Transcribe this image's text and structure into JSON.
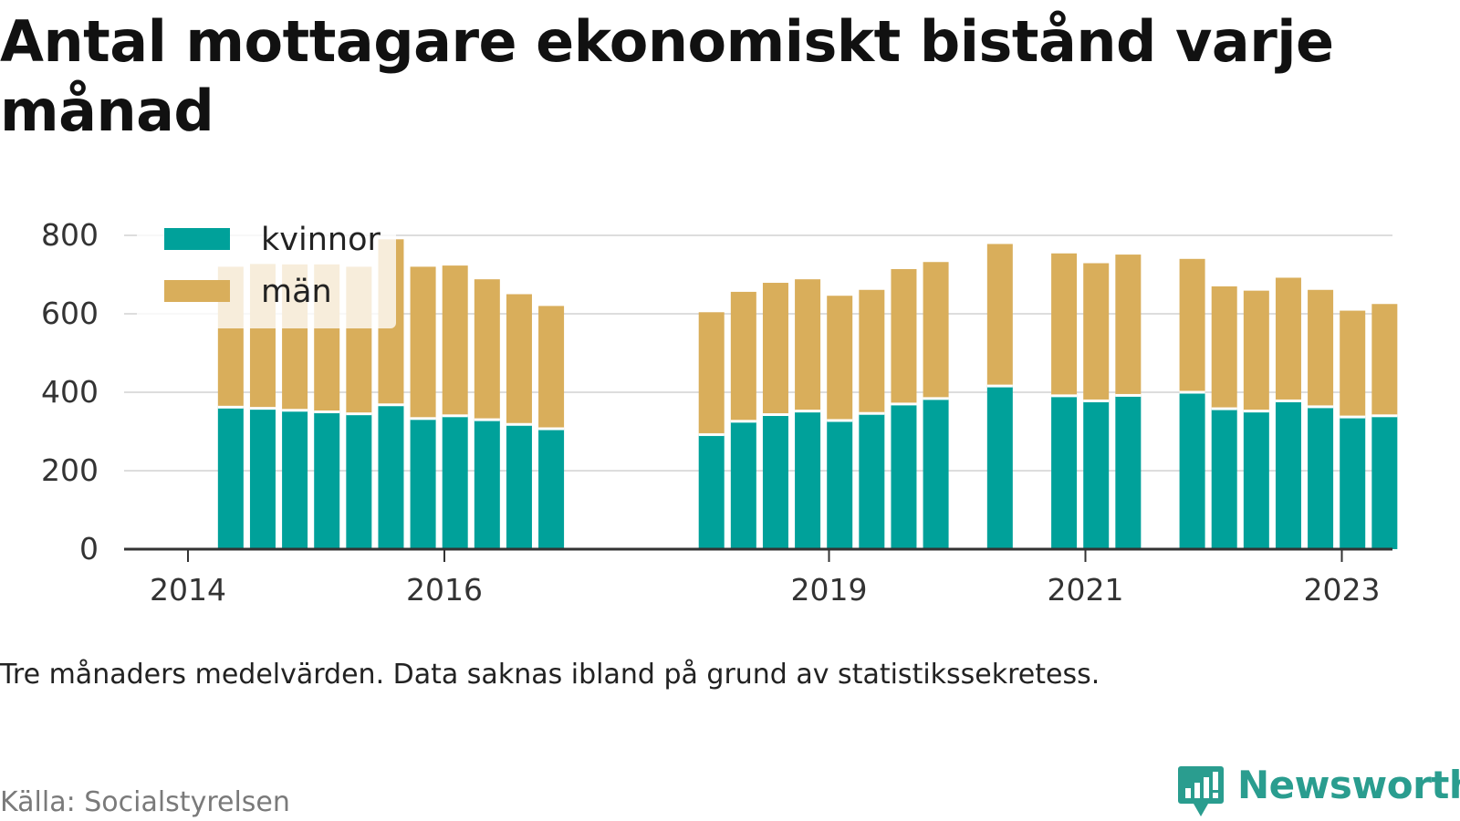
{
  "chart_data": {
    "type": "bar",
    "stacked": true,
    "title": "Antal mottagare ekonomiskt bistånd varje månad",
    "note": "Tre månaders medelvärden. Data saknas ibland på grund av statistikssekretess.",
    "source": "Källa: Socialstyrelsen",
    "ylim": [
      0,
      800
    ],
    "yticks": [
      0,
      200,
      400,
      600,
      800
    ],
    "xtick_labels": [
      "2014",
      "2016",
      "2019",
      "2021",
      "2023"
    ],
    "legend_position": "top-left",
    "grid": true,
    "x": [
      "2014-05",
      "2014-08",
      "2014-11",
      "2015-02",
      "2015-05",
      "2015-08",
      "2015-11",
      "2016-02",
      "2016-05",
      "2016-08",
      "2016-11",
      "2018-02",
      "2018-05",
      "2018-08",
      "2018-11",
      "2019-02",
      "2019-05",
      "2019-08",
      "2019-11",
      "2020-05",
      "2020-11",
      "2021-02",
      "2021-05",
      "2021-11",
      "2022-02",
      "2022-05",
      "2022-08",
      "2022-11",
      "2023-02",
      "2023-05"
    ],
    "series": [
      {
        "name": "kvinnor",
        "color": "#00a19a",
        "values": [
          362,
          359,
          354,
          350,
          345,
          368,
          333,
          340,
          330,
          318,
          307,
          292,
          326,
          343,
          352,
          328,
          346,
          370,
          384,
          416,
          391,
          378,
          392,
          400,
          358,
          352,
          378,
          363,
          337,
          340
        ]
      },
      {
        "name": "män",
        "color": "#d9ae5b",
        "values": [
          358,
          368,
          372,
          376,
          375,
          422,
          387,
          383,
          358,
          332,
          313,
          312,
          330,
          336,
          336,
          318,
          315,
          344,
          348,
          362,
          363,
          351,
          359,
          340,
          312,
          307,
          314,
          298,
          271,
          285
        ]
      }
    ]
  },
  "brand": {
    "name": "Newsworthy",
    "icon": "newsworthy-logo-icon",
    "color": "#2a9d8f"
  },
  "colors": {
    "grid": "#dddddd",
    "axis": "#333333",
    "text": "#333333"
  }
}
